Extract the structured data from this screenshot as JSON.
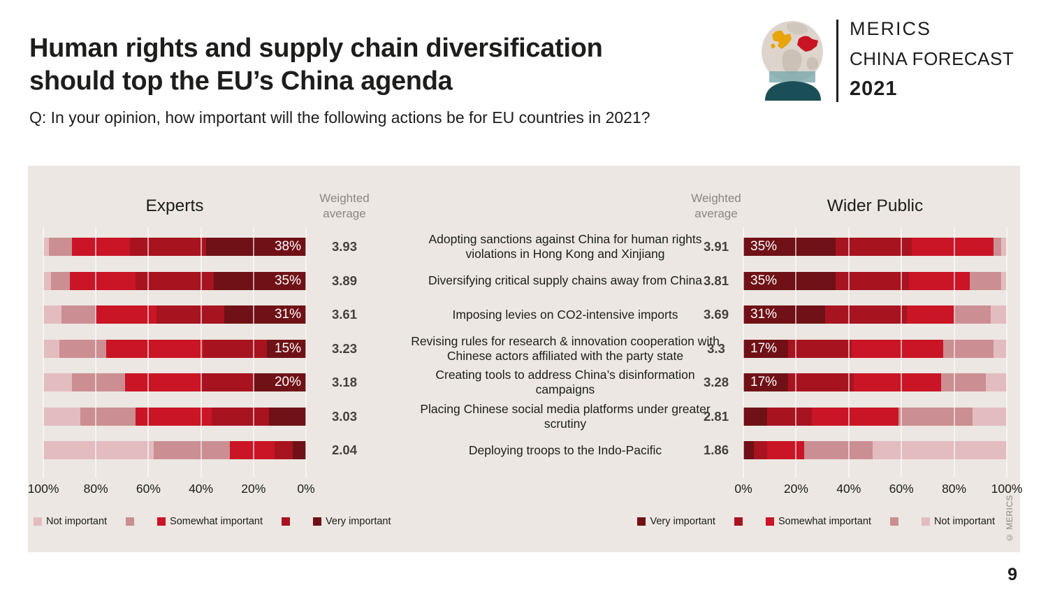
{
  "header": {
    "title_line1": "Human rights and supply chain diversification",
    "title_line2": "should top the EU’s China agenda",
    "subtitle": "Q: In your opinion, how important will the following actions be for EU countries in 2021?"
  },
  "logo": {
    "line1": "MERICS",
    "line2": "CHINA FORECAST",
    "line3": "2021"
  },
  "chart_data": {
    "type": "bar",
    "subtype": "horizontal-stacked-mirrored",
    "grid": true,
    "categories": [
      "Adopting sanctions against China for human rights violations in Hong Kong and Xinjiang",
      "Diversifying critical supply chains away from China",
      "Imposing levies on CO2-intensive imports",
      "Revising rules for research & innovation cooperation with Chinese actors affiliated with the party state",
      "Creating tools to address China’s disinformation campaigns",
      "Placing Chinese social media platforms under greater scrutiny",
      "Deploying troops to the Indo-Pacific"
    ],
    "series": [
      {
        "level": 1,
        "label": "Not important",
        "color": "#e3bcc0"
      },
      {
        "level": 2,
        "label": "",
        "color": "#cb8e92"
      },
      {
        "level": 3,
        "label": "Somewhat important",
        "color": "#c91526"
      },
      {
        "level": 4,
        "label": "",
        "color": "#a81320"
      },
      {
        "level": 5,
        "label": "Very important",
        "color": "#6f1116"
      }
    ],
    "experts": {
      "title": "Experts",
      "weighted_average_label": "Weighted average",
      "weighted_averages": [
        "3.93",
        "3.89",
        "3.61",
        "3.23",
        "3.18",
        "3.03",
        "2.04"
      ],
      "bar_labels": [
        "38%",
        "35%",
        "31%",
        "15%",
        "20%",
        "",
        ""
      ],
      "values_level1_to_5_pct": [
        [
          2,
          9,
          22,
          29,
          38
        ],
        [
          3,
          7,
          25,
          30,
          35
        ],
        [
          7,
          13,
          23,
          26,
          31
        ],
        [
          6,
          18,
          37,
          24,
          15
        ],
        [
          11,
          20,
          29,
          20,
          20
        ],
        [
          14,
          21,
          29,
          22,
          14
        ],
        [
          42,
          29,
          17,
          7,
          5
        ]
      ],
      "x_ticks": [
        "100%",
        "80%",
        "60%",
        "40%",
        "20%",
        "0%"
      ],
      "axis_reversed": true,
      "xlim": [
        0,
        100
      ]
    },
    "wider_public": {
      "title": "Wider Public",
      "weighted_average_label": "Weighted average",
      "weighted_averages": [
        "3.91",
        "3.81",
        "3.69",
        "3.3",
        "3.28",
        "2.81",
        "1.86"
      ],
      "bar_labels": [
        "35%",
        "35%",
        "31%",
        "17%",
        "17%",
        "",
        ""
      ],
      "values_level1_to_5_pct": [
        [
          2,
          3,
          31,
          29,
          35
        ],
        [
          2,
          12,
          23,
          28,
          35
        ],
        [
          6,
          14,
          18,
          31,
          31
        ],
        [
          5,
          19,
          35,
          24,
          17
        ],
        [
          8,
          17,
          33,
          25,
          17
        ],
        [
          13,
          28,
          33,
          17,
          9
        ],
        [
          51,
          26,
          14,
          5,
          4
        ]
      ],
      "x_ticks": [
        "0%",
        "20%",
        "40%",
        "60%",
        "80%",
        "100%"
      ],
      "axis_reversed": false,
      "xlim": [
        0,
        100
      ]
    },
    "legend_left_order": "light_to_dark",
    "legend_right_order": "dark_to_light",
    "panel_background": "#ece7e2"
  },
  "footer": {
    "copyright": "© MERICS"
  },
  "page": {
    "number": "9"
  }
}
